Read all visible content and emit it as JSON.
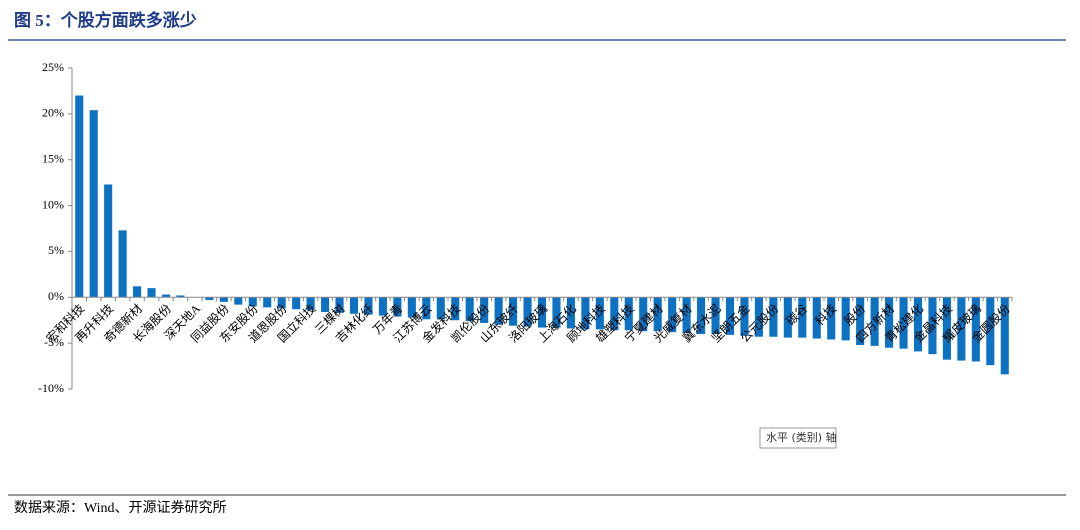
{
  "chart_data": {
    "type": "bar",
    "title": "图 5：个股方面跌多涨少",
    "source": "数据来源：Wind、开源证券研究所",
    "tooltip": "水平 (类别) 轴",
    "color": "#0e72c2",
    "categories": [
      "宏和科技",
      null,
      "再升科技",
      null,
      "奇德新材",
      null,
      "长海股份",
      null,
      "深天地A",
      null,
      "同益股份",
      null,
      "东安股份",
      null,
      "道恩股份",
      null,
      "国立科技",
      null,
      "三棵树",
      null,
      "吉林化纤",
      null,
      "万年青",
      null,
      "江苏博云",
      null,
      "金发科技",
      null,
      "凯伦股份",
      null,
      "山东玻纤",
      null,
      "洛阳玻璃",
      null,
      "上海石化",
      null,
      "顾地科技",
      null,
      "雄塑科技",
      null,
      "宁夏建材",
      null,
      "光威复材",
      null,
      "冀东水泥",
      null,
      "坚朗五金",
      null,
      "公元股份",
      null,
      "碳谷",
      null,
      "科技",
      null,
      "股份",
      null,
      "四方新材",
      null,
      "青松建化",
      null,
      "金晶科技",
      null,
      "耀皮玻璃",
      null,
      "金圆股份"
    ],
    "values": [
      22.0,
      20.4,
      12.3,
      7.3,
      1.2,
      1.0,
      0.3,
      0.2,
      0,
      -0.3,
      -0.5,
      -0.8,
      -1.0,
      -1.1,
      -1.2,
      -1.3,
      -1.4,
      -1.6,
      -1.7,
      -1.8,
      -1.9,
      -2.0,
      -2.1,
      -2.2,
      -2.4,
      -2.4,
      -2.5,
      -2.6,
      -2.8,
      -3.0,
      -3.1,
      -3.2,
      -3.3,
      -3.3,
      -3.4,
      -3.5,
      -3.5,
      -3.6,
      -3.6,
      -3.7,
      -3.7,
      -3.8,
      -3.9,
      -4.0,
      -4.0,
      -4.1,
      -4.2,
      -4.3,
      -4.3,
      -4.4,
      -4.4,
      -4.5,
      -4.6,
      -4.7,
      -5.2,
      -5.3,
      -5.5,
      -5.6,
      -5.9,
      -6.2,
      -6.8,
      -6.9,
      -7.0,
      -7.4,
      -8.4
    ],
    "ylim": [
      -10,
      25
    ],
    "yticks": [
      {
        "value": -10,
        "label": "-10%"
      },
      {
        "value": -5,
        "label": "-5%"
      },
      {
        "value": 0,
        "label": "0%"
      },
      {
        "value": 5,
        "label": "5%"
      },
      {
        "value": 10,
        "label": "10%"
      },
      {
        "value": 15,
        "label": "15%"
      },
      {
        "value": 20,
        "label": "20%"
      },
      {
        "value": 25,
        "label": "25%"
      }
    ],
    "grid": false
  }
}
